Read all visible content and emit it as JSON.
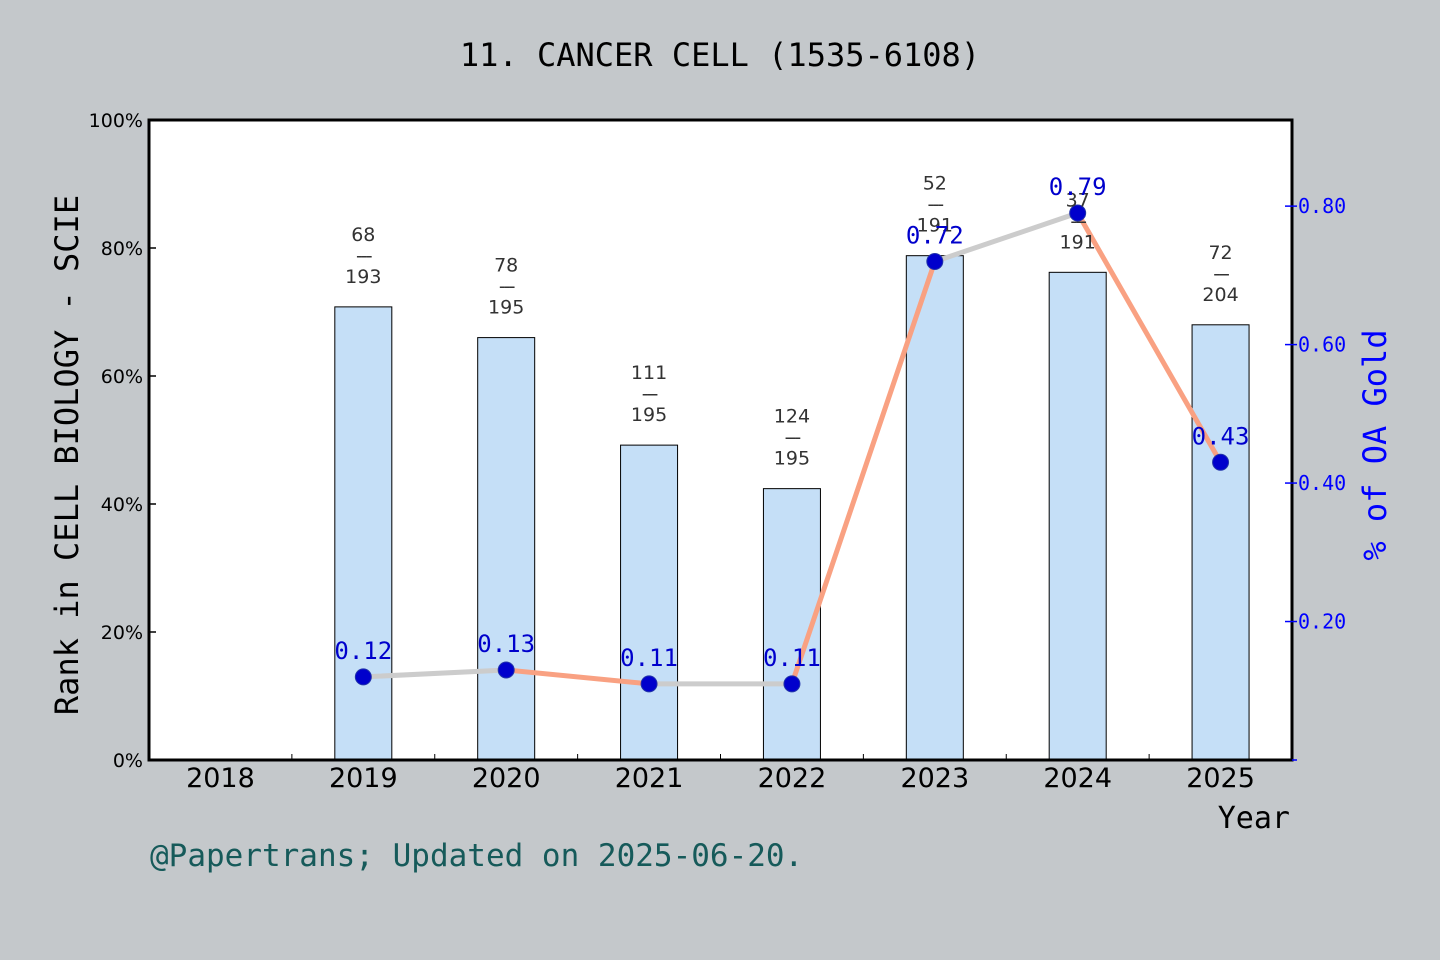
{
  "chart_data": {
    "type": "bar",
    "title": "11. CANCER CELL (1535-6108)",
    "xlabel": "Year",
    "ylabel": "Rank in CELL BIOLOGY - SCIE",
    "y2label": "% of OA Gold",
    "categories": [
      "2018",
      "2019",
      "2020",
      "2021",
      "2022",
      "2023",
      "2024",
      "2025"
    ],
    "ylim": [
      0,
      100
    ],
    "y_ticks": [
      "0%",
      "20%",
      "40%",
      "60%",
      "80%",
      "100%"
    ],
    "y2lim": [
      0,
      0.9244
    ],
    "y2_ticks": [
      "0.20",
      "0.40",
      "0.60",
      "0.80"
    ],
    "bars": {
      "values": [
        null,
        70.8,
        66.0,
        49.2,
        42.4,
        78.8,
        76.2,
        68.0
      ],
      "ranks": [
        null,
        "68",
        "78",
        "111",
        "124",
        "52",
        "37",
        "72"
      ],
      "totals": [
        null,
        "193",
        "195",
        "195",
        "195",
        "191",
        "191",
        "204"
      ],
      "color": "#c5dff7"
    },
    "line": {
      "values": [
        null,
        0.12,
        0.13,
        0.11,
        0.11,
        0.72,
        0.79,
        0.43
      ],
      "labels": [
        null,
        "0.12",
        "0.13",
        "0.11",
        "0.11",
        "0.72",
        "0.79",
        "0.43"
      ],
      "colors": [
        "#cccccc",
        "#f9a182",
        "#cccccc",
        "#f9a182",
        "#cccccc",
        "#f9a182",
        "#f9a182"
      ],
      "marker_color": "#0000cc"
    },
    "grid": false,
    "legend": "none"
  },
  "footer": "@Papertrans; Updated on 2025-06-20.",
  "colors": {
    "background": "#c4c8cb",
    "plot": "#ffffff",
    "right_axis": "#0000ff",
    "footer": "#165a5a"
  }
}
